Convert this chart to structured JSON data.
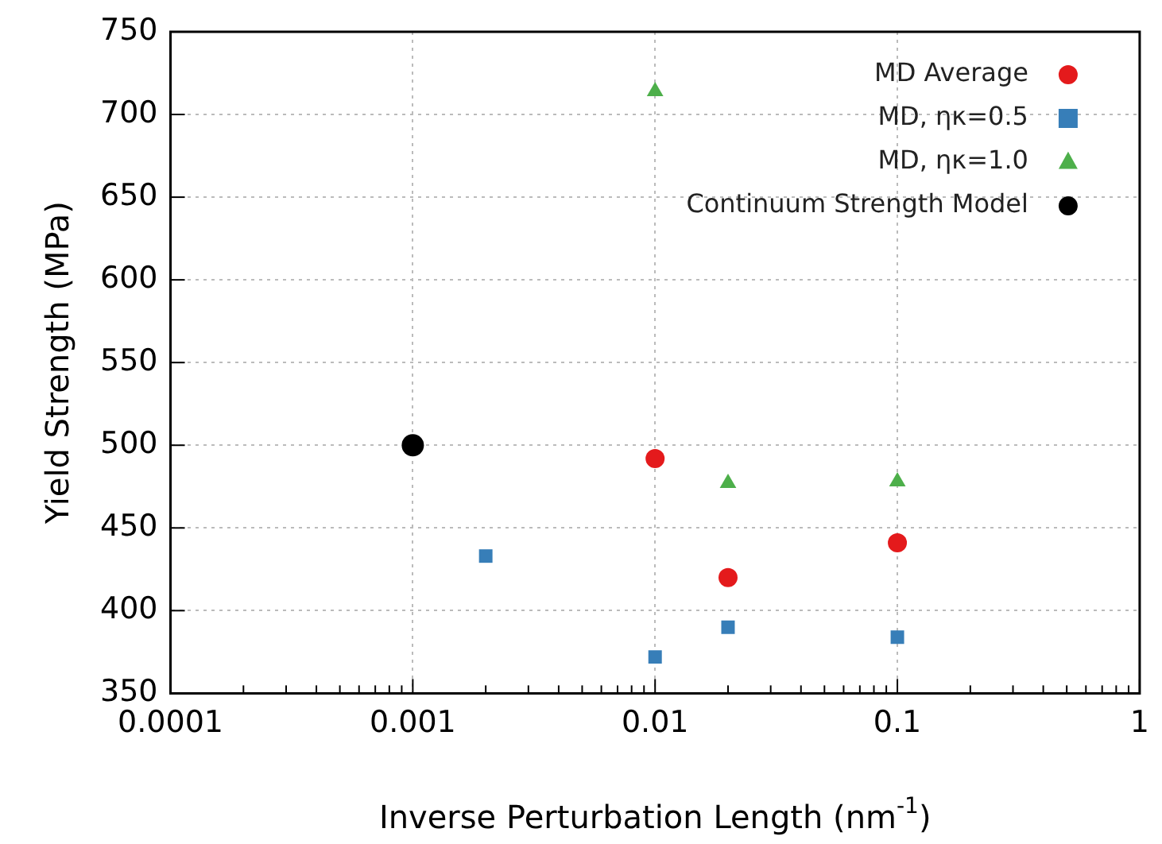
{
  "chart_data": {
    "type": "scatter",
    "xlabel": "Inverse Perturbation Length (nm$^{-1}$)",
    "ylabel": "Yield Strength (MPa)",
    "log": "x",
    "grid": true,
    "legend": "top right",
    "xlim": [
      0.0001,
      1
    ],
    "ylim": [
      350,
      750
    ],
    "xticks": [
      {
        "value": 0.0001,
        "label": "0.0001"
      },
      {
        "value": 0.0002,
        "label": null
      },
      {
        "value": 0.0003,
        "label": null
      },
      {
        "value": 0.0004,
        "label": null
      },
      {
        "value": 0.0005,
        "label": null
      },
      {
        "value": 0.0006,
        "label": null
      },
      {
        "value": 0.0007,
        "label": null
      },
      {
        "value": 0.0008,
        "label": null
      },
      {
        "value": 0.0009,
        "label": null
      },
      {
        "value": 0.001,
        "label": "0.001"
      },
      {
        "value": 0.002,
        "label": null
      },
      {
        "value": 0.003,
        "label": null
      },
      {
        "value": 0.004,
        "label": null
      },
      {
        "value": 0.005,
        "label": null
      },
      {
        "value": 0.006,
        "label": null
      },
      {
        "value": 0.007,
        "label": null
      },
      {
        "value": 0.008,
        "label": null
      },
      {
        "value": 0.009,
        "label": null
      },
      {
        "value": 0.01,
        "label": "0.01"
      },
      {
        "value": 0.02,
        "label": null
      },
      {
        "value": 0.03,
        "label": null
      },
      {
        "value": 0.04,
        "label": null
      },
      {
        "value": 0.05,
        "label": null
      },
      {
        "value": 0.06,
        "label": null
      },
      {
        "value": 0.07,
        "label": null
      },
      {
        "value": 0.08,
        "label": null
      },
      {
        "value": 0.09,
        "label": null
      },
      {
        "value": 0.1,
        "label": "0.1"
      },
      {
        "value": 0.2,
        "label": null
      },
      {
        "value": 0.3,
        "label": null
      },
      {
        "value": 0.4,
        "label": null
      },
      {
        "value": 0.5,
        "label": null
      },
      {
        "value": 0.6,
        "label": null
      },
      {
        "value": 0.7,
        "label": null
      },
      {
        "value": 0.8,
        "label": null
      },
      {
        "value": 0.9,
        "label": null
      },
      {
        "value": 1,
        "label": "1"
      }
    ],
    "yticks": [
      350,
      400,
      450,
      500,
      550,
      600,
      650,
      700,
      750
    ],
    "series": [
      {
        "name": "MD Average",
        "color": "#e41a1c",
        "marker": "circle",
        "x": [
          0.01,
          0.02,
          0.1
        ],
        "values": [
          492,
          420,
          441
        ]
      },
      {
        "name": "MD, ηκ=0.5",
        "color": "#377eb8",
        "marker": "square",
        "x": [
          0.002,
          0.01,
          0.02,
          0.1
        ],
        "values": [
          433,
          372,
          390,
          384
        ]
      },
      {
        "name": "MD, ηκ=1.0",
        "color": "#4daf4a",
        "marker": "triangle",
        "x": [
          0.01,
          0.02,
          0.1
        ],
        "values": [
          714,
          477,
          478
        ]
      },
      {
        "name": "Continuum Strength Model",
        "color": "#000000",
        "marker": "circle",
        "x": [
          0.001
        ],
        "values": [
          500
        ]
      }
    ]
  }
}
